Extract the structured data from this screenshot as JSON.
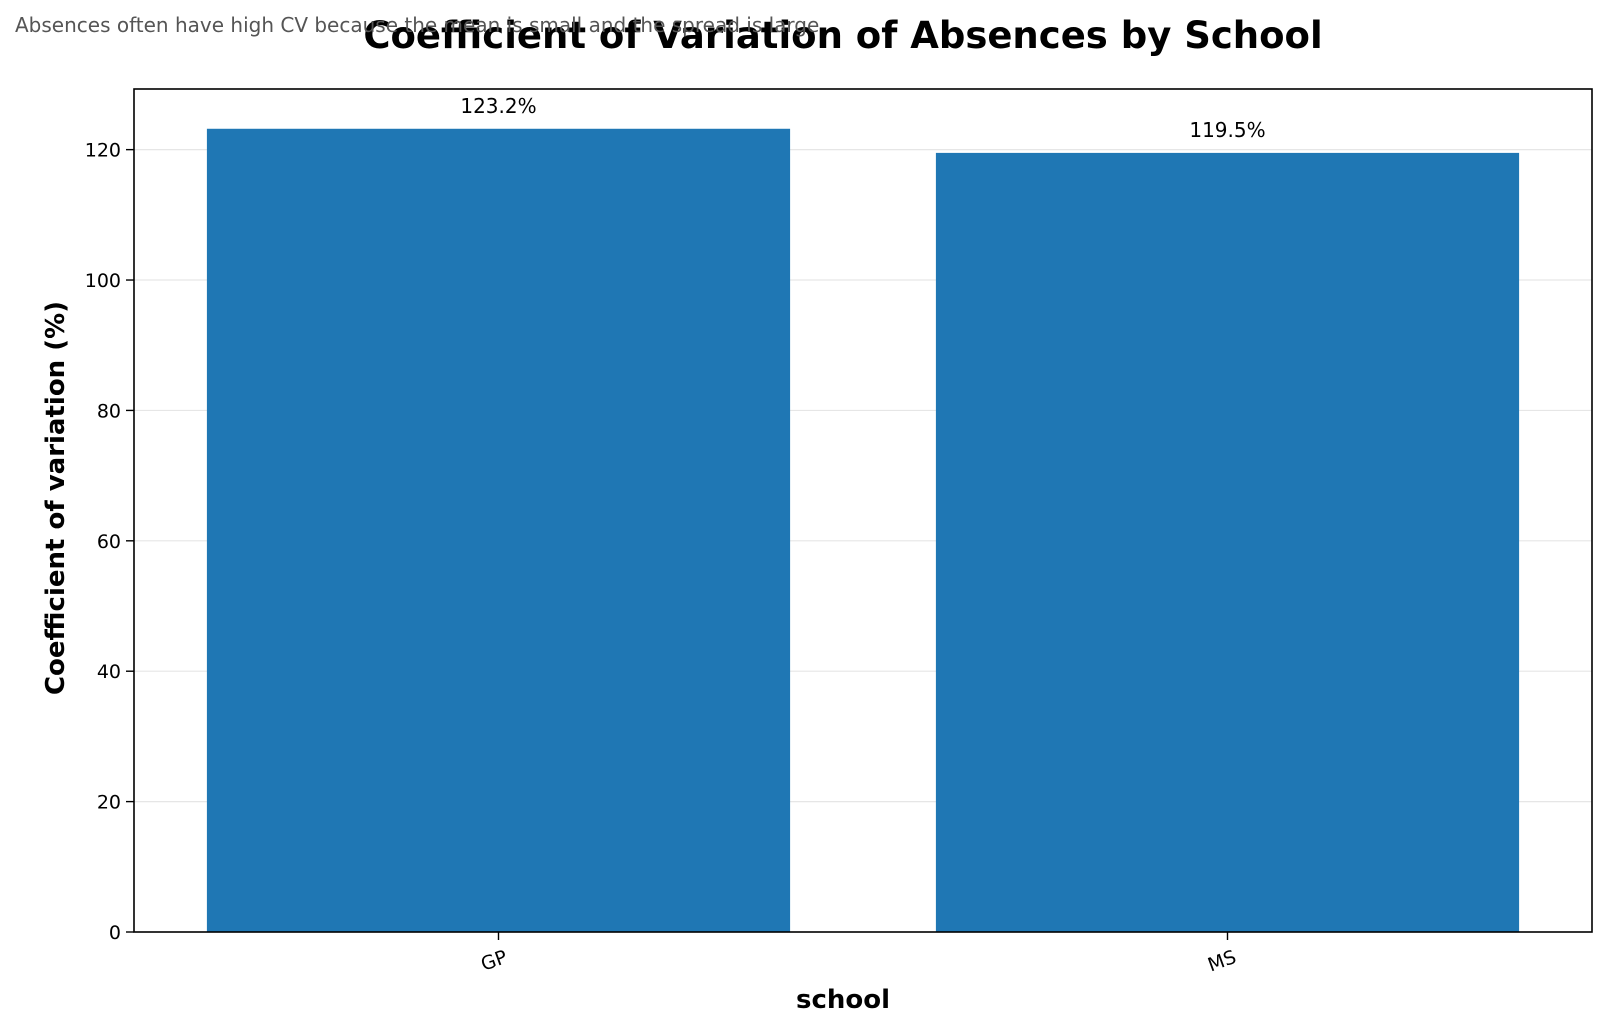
{
  "chart_data": {
    "type": "bar",
    "title": "Coefficient of Variation of Absences by School",
    "subtitle": "Absences often have high CV because the mean is small and the spread is large",
    "xlabel": "school",
    "ylabel": "Coefficient of variation (%)",
    "categories": [
      "GP",
      "MS"
    ],
    "values": [
      123.2,
      119.5
    ],
    "value_labels": [
      "123.2%",
      "119.5%"
    ],
    "ylim": [
      0,
      129.3
    ],
    "yticks": [
      0,
      20,
      40,
      60,
      80,
      100,
      120
    ],
    "ytick_labels": [
      "0",
      "20",
      "40",
      "60",
      "80",
      "100",
      "120"
    ],
    "grid": "y",
    "legend": "none",
    "bar_color": "#1f77b4"
  }
}
